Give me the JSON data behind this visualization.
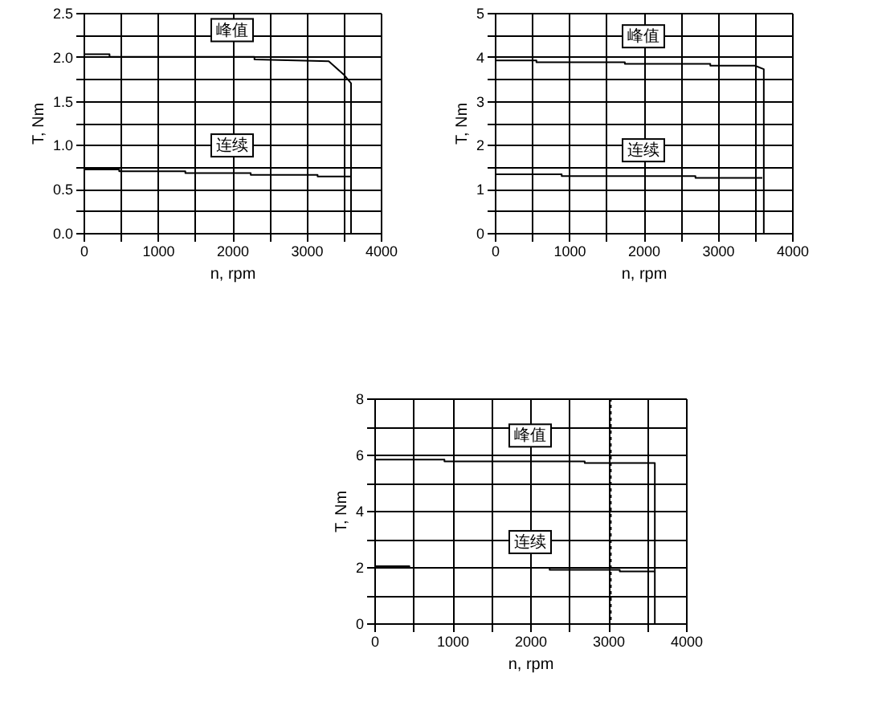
{
  "chart_data": [
    {
      "type": "line",
      "xlabel": "n, rpm",
      "ylabel": "T, Nm",
      "xlim": [
        0,
        4000
      ],
      "ylim": [
        0,
        2.5
      ],
      "grid": true,
      "legend": false,
      "marker": "none",
      "line_style": "solid",
      "xticks": [
        0,
        {
          "value": 500,
          "label": null
        },
        1000,
        {
          "value": 1500,
          "label": null
        },
        2000,
        {
          "value": 2500,
          "label": null
        },
        3000,
        {
          "value": 3500,
          "label": null
        },
        4000
      ],
      "yticks": [
        {
          "value": 0,
          "label": "0.0"
        },
        {
          "value": 0.25,
          "label": null
        },
        0.5,
        {
          "value": 0.75,
          "label": null
        },
        {
          "value": 1,
          "label": "1.0"
        },
        {
          "value": 1.25,
          "label": null
        },
        1.5,
        {
          "value": 1.75,
          "label": null
        },
        {
          "value": 2,
          "label": "2.0"
        },
        {
          "value": 2.25,
          "label": null
        },
        2.5
      ],
      "series": [
        {
          "name": "峰值",
          "color": "#000000",
          "x": [
            0,
            350,
            350,
            2300,
            2300,
            3300,
            3500,
            3600,
            3600
          ],
          "values": [
            2.03,
            2.03,
            2.0,
            2.0,
            1.97,
            1.95,
            1.8,
            1.7,
            0
          ]
        },
        {
          "name": "连续",
          "color": "#000000",
          "x": [
            0,
            480,
            480,
            1370,
            1370,
            2250,
            2250,
            3150,
            3150,
            3600
          ],
          "values": [
            0.72,
            0.72,
            0.7,
            0.7,
            0.68,
            0.68,
            0.66,
            0.66,
            0.64,
            0.64
          ]
        }
      ]
    },
    {
      "type": "line",
      "xlabel": "n, rpm",
      "ylabel": "T, Nm",
      "xlim": [
        0,
        4000
      ],
      "ylim": [
        0,
        5
      ],
      "grid": true,
      "legend": false,
      "marker": "none",
      "line_style": "solid",
      "xticks": [
        0,
        {
          "value": 500,
          "label": null
        },
        1000,
        {
          "value": 1500,
          "label": null
        },
        2000,
        {
          "value": 2500,
          "label": null
        },
        3000,
        {
          "value": 3500,
          "label": null
        },
        4000
      ],
      "yticks": [
        0,
        {
          "value": 0.5,
          "label": null
        },
        1,
        {
          "value": 1.5,
          "label": null
        },
        2,
        {
          "value": 2.5,
          "label": null
        },
        3,
        {
          "value": 3.5,
          "label": null
        },
        4,
        {
          "value": 4.5,
          "label": null
        },
        5
      ],
      "series": [
        {
          "name": "峰值",
          "color": "#000000",
          "x": [
            0,
            560,
            560,
            1750,
            1750,
            2900,
            2900,
            3500,
            3620,
            3620
          ],
          "values": [
            3.92,
            3.92,
            3.88,
            3.88,
            3.84,
            3.84,
            3.8,
            3.8,
            3.72,
            0
          ]
        },
        {
          "name": "连续",
          "color": "#000000",
          "x": [
            0,
            900,
            900,
            2700,
            2700,
            3600
          ],
          "values": [
            1.33,
            1.33,
            1.29,
            1.29,
            1.25,
            1.25
          ]
        }
      ]
    },
    {
      "type": "line",
      "xlabel": "n, rpm",
      "ylabel": "T, Nm",
      "xlim": [
        0,
        4000
      ],
      "ylim": [
        0,
        8
      ],
      "grid": true,
      "legend": false,
      "marker": "none",
      "line_style": "solid",
      "xticks": [
        0,
        {
          "value": 500,
          "label": null
        },
        1000,
        {
          "value": 1500,
          "label": null
        },
        2000,
        {
          "value": 2500,
          "label": null
        },
        3000,
        {
          "value": 3500,
          "label": null
        },
        4000
      ],
      "yticks": [
        0,
        {
          "value": 1,
          "label": null
        },
        2,
        {
          "value": 3,
          "label": null
        },
        4,
        {
          "value": 5,
          "label": null
        },
        6,
        {
          "value": 7,
          "label": null
        },
        8
      ],
      "ref_lines": [
        {
          "axis": "x",
          "value": 3030,
          "line_style": "dotted",
          "color": "#000000"
        }
      ],
      "series": [
        {
          "name": "峰值",
          "color": "#000000",
          "x": [
            0,
            900,
            900,
            2700,
            2700,
            3600,
            3600
          ],
          "values": [
            5.82,
            5.82,
            5.76,
            5.76,
            5.7,
            5.7,
            0
          ]
        },
        {
          "name": "连续",
          "color": "#000000",
          "x": [
            0,
            450,
            450,
            2250,
            2250,
            3150,
            3150,
            3600
          ],
          "values": [
            2.03,
            2.03,
            1.97,
            1.97,
            1.9,
            1.9,
            1.84,
            1.84
          ]
        }
      ]
    }
  ]
}
